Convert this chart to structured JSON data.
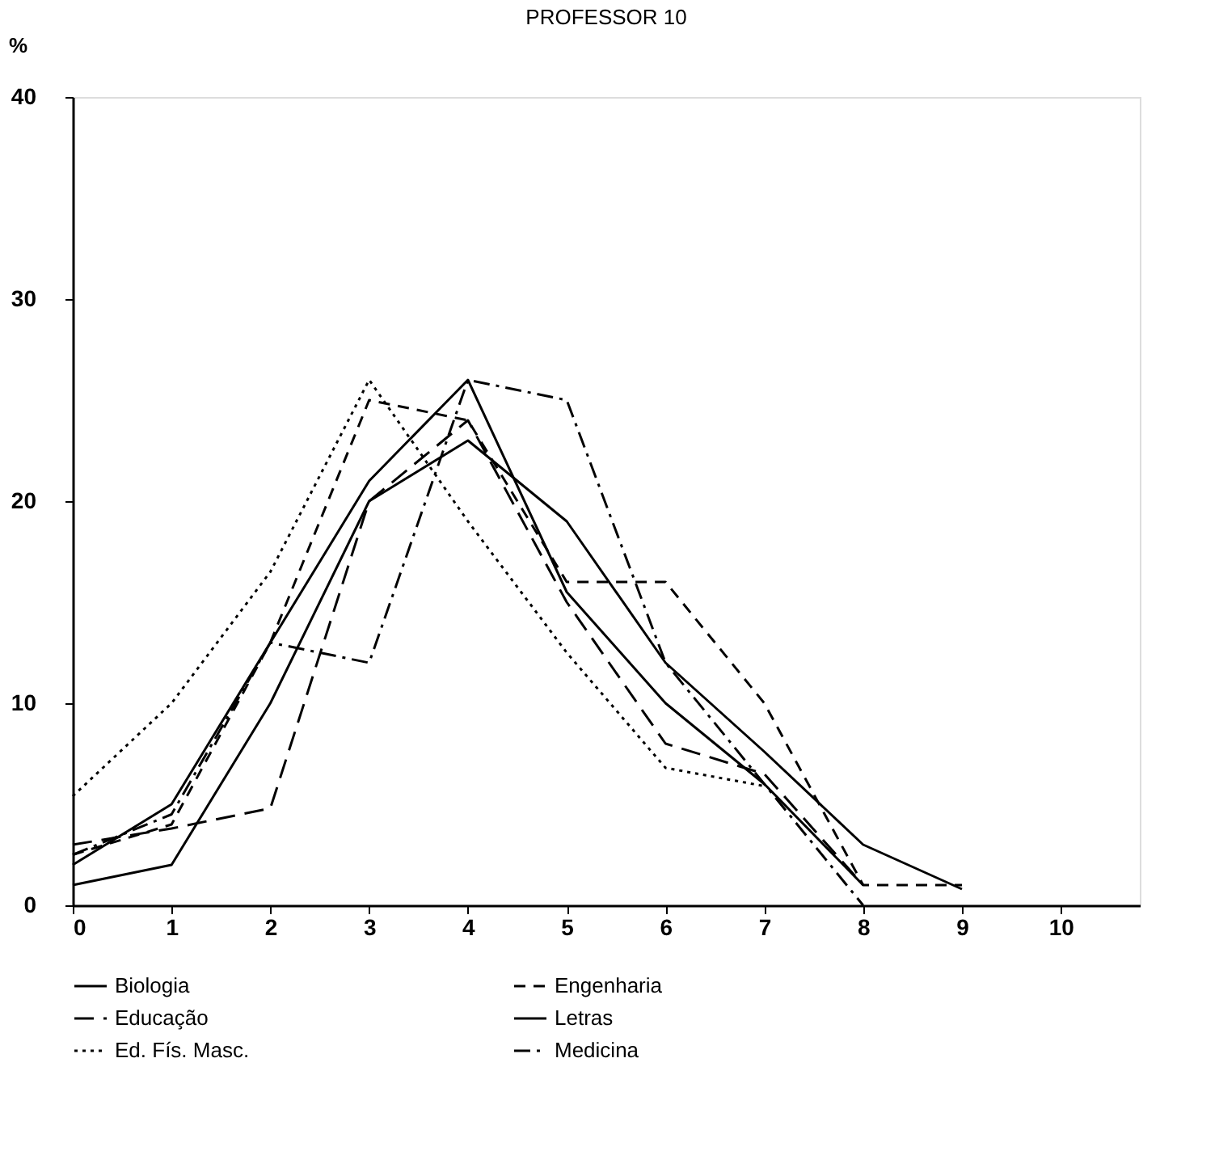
{
  "chart_data": {
    "type": "line",
    "title": "PROFESSOR 10",
    "ylabel": "%",
    "x": [
      0,
      1,
      2,
      3,
      4,
      5,
      6,
      7,
      8,
      9
    ],
    "series": [
      {
        "name": "Biologia",
        "color": "#000000",
        "line_style": "solid",
        "values": [
          2,
          5,
          13,
          21,
          26,
          15.5,
          10,
          6,
          1,
          null
        ]
      },
      {
        "name": "Educação",
        "color": "#000000",
        "line_style": "longdash",
        "values": [
          3,
          3.8,
          4.8,
          20,
          24,
          15,
          8,
          6.5,
          1,
          null
        ]
      },
      {
        "name": "Ed. Fís. Masc.",
        "color": "#000000",
        "line_style": "dotted",
        "values": [
          5.4,
          10,
          16.5,
          26,
          19,
          12.5,
          6.8,
          5.9,
          null,
          null
        ]
      },
      {
        "name": "Engenharia",
        "color": "#000000",
        "line_style": "dashed",
        "values": [
          2.5,
          4,
          13,
          25,
          24,
          16,
          16,
          10,
          1,
          1
        ]
      },
      {
        "name": "Letras",
        "color": "#000000",
        "line_style": "solid",
        "values": [
          1,
          2,
          10,
          20,
          23,
          19,
          12,
          7.6,
          3,
          0.8
        ]
      },
      {
        "name": "Medicina",
        "color": "#000000",
        "line_style": "dashdot",
        "values": [
          2.5,
          4.5,
          13,
          12,
          26,
          25,
          12,
          6,
          0,
          null
        ]
      }
    ],
    "xlim": [
      0,
      10.8
    ],
    "xticks": [
      0,
      1,
      2,
      3,
      4,
      5,
      6,
      7,
      8,
      9,
      10
    ],
    "ylim": [
      0,
      40
    ],
    "yticks": [
      0,
      10,
      20,
      30,
      40
    ],
    "grid": false,
    "legend": "bottom",
    "marker": "none"
  }
}
